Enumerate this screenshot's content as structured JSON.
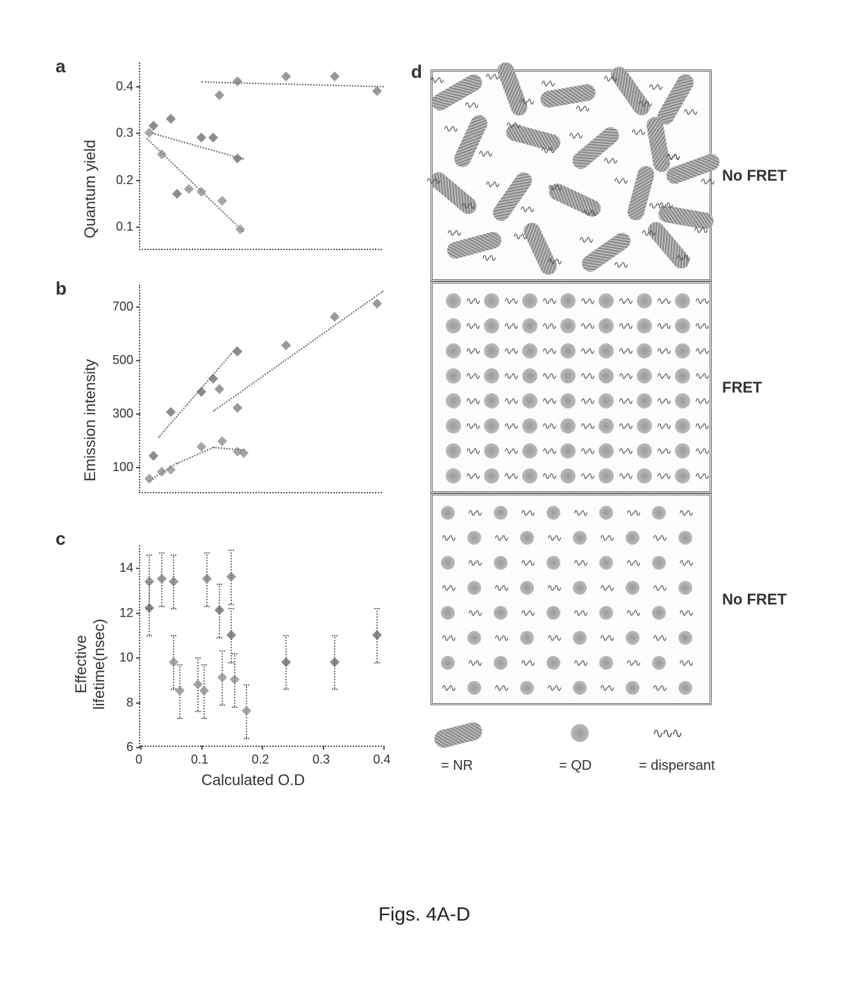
{
  "caption": "Figs. 4A-D",
  "panel_a": {
    "label": "a",
    "ylabel": "Quantum yield",
    "yticks": [
      0.1,
      0.2,
      0.3,
      0.4
    ],
    "ylim": [
      0.05,
      0.45
    ],
    "xlim": [
      0.0,
      0.4
    ],
    "series1": {
      "color": "#777777",
      "points": [
        [
          0.13,
          0.38
        ],
        [
          0.16,
          0.41
        ],
        [
          0.24,
          0.42
        ],
        [
          0.32,
          0.42
        ],
        [
          0.39,
          0.39
        ]
      ],
      "fit": [
        [
          0.1,
          0.41
        ],
        [
          0.4,
          0.4
        ]
      ]
    },
    "series2": {
      "color": "#666666",
      "points": [
        [
          0.022,
          0.315
        ],
        [
          0.05,
          0.33
        ],
        [
          0.06,
          0.17
        ],
        [
          0.1,
          0.29
        ],
        [
          0.12,
          0.29
        ],
        [
          0.16,
          0.245
        ]
      ],
      "fit": [
        [
          0.02,
          0.3
        ],
        [
          0.17,
          0.245
        ]
      ]
    },
    "series3": {
      "color": "#888888",
      "points": [
        [
          0.015,
          0.3
        ],
        [
          0.035,
          0.255
        ],
        [
          0.08,
          0.18
        ],
        [
          0.1,
          0.175
        ],
        [
          0.135,
          0.155
        ],
        [
          0.165,
          0.095
        ]
      ],
      "fit": [
        [
          0.01,
          0.29
        ],
        [
          0.17,
          0.09
        ]
      ]
    }
  },
  "panel_b": {
    "label": "b",
    "ylabel": "Emission intensity",
    "yticks": [
      100,
      300,
      500,
      700
    ],
    "ylim": [
      0,
      780
    ],
    "xlim": [
      0.0,
      0.4
    ],
    "series1": {
      "color": "#777777",
      "points": [
        [
          0.13,
          390
        ],
        [
          0.16,
          320
        ],
        [
          0.24,
          555
        ],
        [
          0.32,
          660
        ],
        [
          0.39,
          710
        ]
      ],
      "fit": [
        [
          0.12,
          310
        ],
        [
          0.4,
          760
        ]
      ]
    },
    "series2": {
      "color": "#666666",
      "points": [
        [
          0.022,
          140
        ],
        [
          0.05,
          305
        ],
        [
          0.1,
          380
        ],
        [
          0.12,
          430
        ],
        [
          0.16,
          530
        ]
      ],
      "fit": [
        [
          0.03,
          210
        ],
        [
          0.16,
          550
        ]
      ]
    },
    "series3": {
      "color": "#888888",
      "points": [
        [
          0.015,
          55
        ],
        [
          0.035,
          80
        ],
        [
          0.05,
          88
        ],
        [
          0.1,
          175
        ],
        [
          0.135,
          195
        ],
        [
          0.16,
          155
        ],
        [
          0.17,
          150
        ]
      ],
      "fit_curve": [
        [
          0.015,
          50
        ],
        [
          0.06,
          115
        ],
        [
          0.12,
          175
        ],
        [
          0.17,
          165
        ]
      ]
    }
  },
  "panel_c": {
    "label": "c",
    "ylabel": "Effective\nlifetime(nsec)",
    "xlabel": "Calculated O.D",
    "yticks": [
      6,
      8,
      10,
      12,
      14
    ],
    "ylim": [
      6,
      15
    ],
    "xticks": [
      0.0,
      0.1,
      0.2,
      0.3,
      0.4
    ],
    "xlim": [
      0.0,
      0.4
    ],
    "series1": {
      "color": "#777777",
      "points": [
        [
          0.015,
          13.4
        ],
        [
          0.035,
          13.5
        ],
        [
          0.055,
          13.4
        ],
        [
          0.11,
          13.5
        ],
        [
          0.15,
          13.6
        ]
      ],
      "err": 1.2
    },
    "series2": {
      "color": "#666666",
      "points": [
        [
          0.015,
          12.2
        ],
        [
          0.13,
          12.1
        ],
        [
          0.15,
          11.0
        ],
        [
          0.24,
          9.8
        ],
        [
          0.32,
          9.8
        ],
        [
          0.39,
          11.0
        ]
      ],
      "err": 1.2
    },
    "series3": {
      "color": "#888888",
      "points": [
        [
          0.055,
          9.8
        ],
        [
          0.065,
          8.5
        ],
        [
          0.095,
          8.8
        ],
        [
          0.105,
          8.5
        ],
        [
          0.135,
          9.1
        ],
        [
          0.155,
          9.0
        ],
        [
          0.175,
          7.6
        ]
      ],
      "err": 1.2
    }
  },
  "panel_d": {
    "label": "d",
    "box1_label": "No FRET",
    "box2_label": "FRET",
    "box3_label": "No FRET",
    "legend": {
      "nr": "= NR",
      "qd": "= QD",
      "disp": "= dispersant"
    },
    "colors": {
      "border": "#666666",
      "nr_fill": "#999999",
      "qd_fill": "#aaaaaa",
      "disp_color": "#555555"
    }
  }
}
